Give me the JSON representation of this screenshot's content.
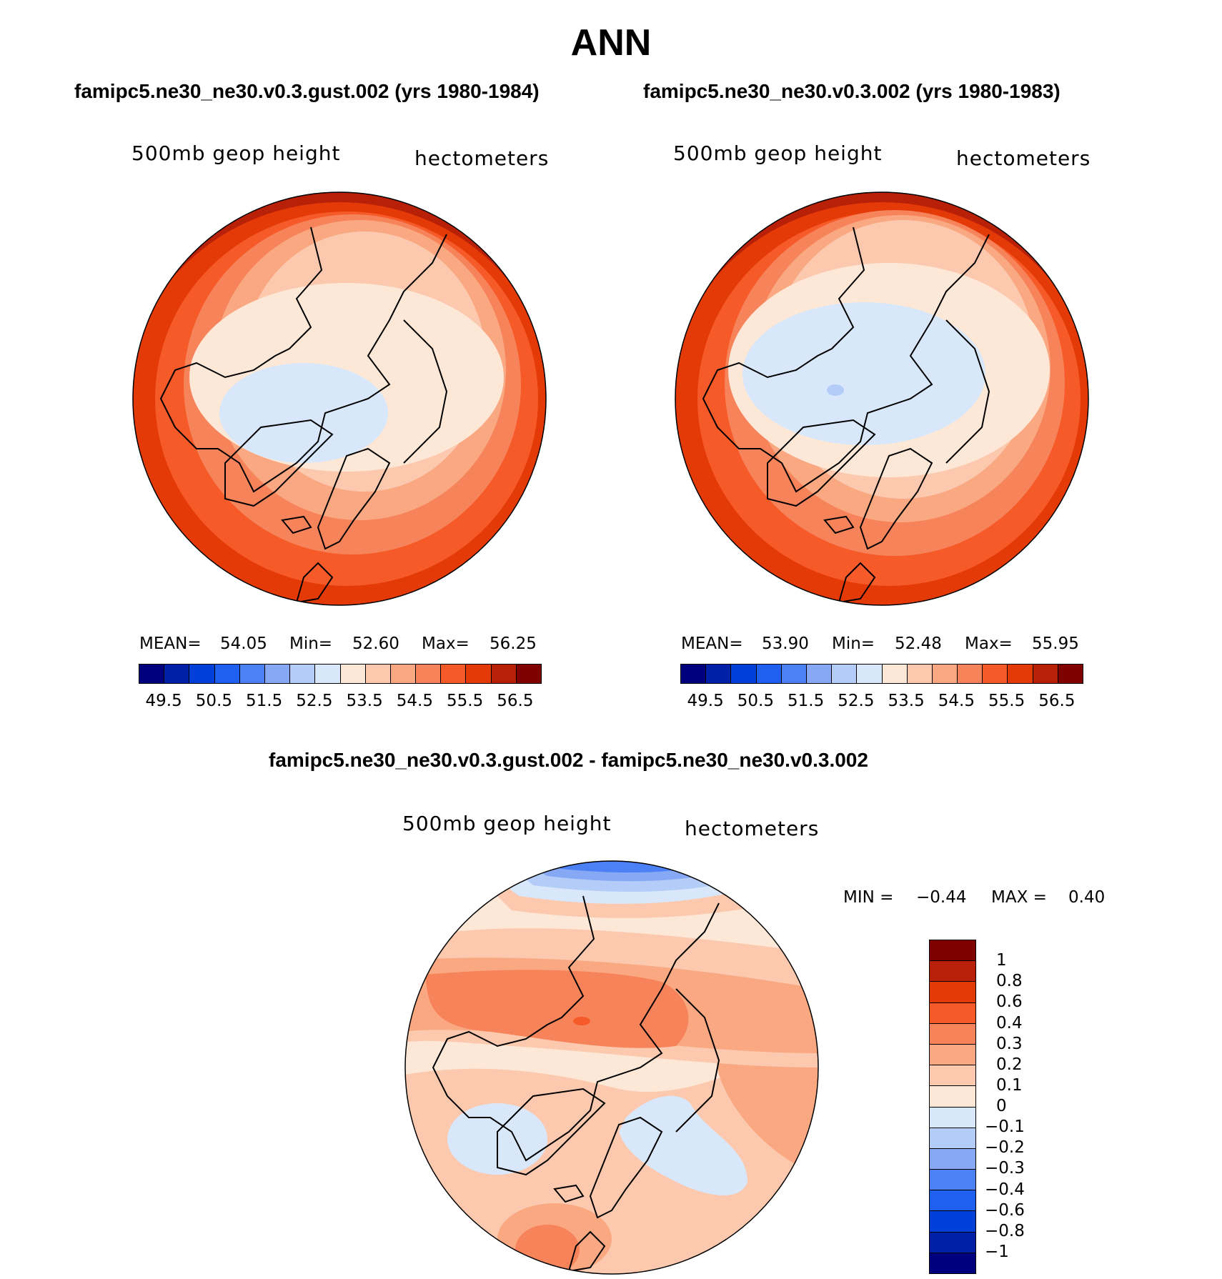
{
  "title": "ANN",
  "panels": [
    {
      "case": "famipc5.ne30_ne30.v0.3.gust.002 (yrs 1980-1984)",
      "variable": "500mb geop height",
      "units": "hectometers",
      "mean_label": "MEAN=",
      "mean": "54.05",
      "min_label": "Min=",
      "min": "52.60",
      "max_label": "Max=",
      "max": "56.25"
    },
    {
      "case": "famipc5.ne30_ne30.v0.3.002 (yrs 1980-1983)",
      "variable": "500mb geop height",
      "units": "hectometers",
      "mean_label": "MEAN=",
      "mean": "53.90",
      "min_label": "Min=",
      "min": "52.48",
      "max_label": "Max=",
      "max": "55.95"
    }
  ],
  "diff": {
    "case": "famipc5.ne30_ne30.v0.3.gust.002 - famipc5.ne30_ne30.v0.3.002",
    "variable": "500mb geop height",
    "units": "hectometers",
    "min_label": "MIN =",
    "min": "−0.44",
    "max_label": "MAX =",
    "max": "0.40"
  },
  "chart_data": [
    {
      "type": "heatmap",
      "projection": "north polar stereographic",
      "title": "famipc5.ne30_ne30.v0.3.gust.002 (yrs 1980-1984)",
      "variable": "500mb geop height",
      "units": "hectometers",
      "stats": {
        "mean": 54.05,
        "min": 52.6,
        "max": 56.25
      },
      "colorbar_ticks": [
        "49.5",
        "50.5",
        "51.5",
        "52.5",
        "53.5",
        "54.5",
        "55.5",
        "56.5"
      ]
    },
    {
      "type": "heatmap",
      "projection": "north polar stereographic",
      "title": "famipc5.ne30_ne30.v0.3.002 (yrs 1980-1983)",
      "variable": "500mb geop height",
      "units": "hectometers",
      "stats": {
        "mean": 53.9,
        "min": 52.48,
        "max": 55.95
      },
      "colorbar_ticks": [
        "49.5",
        "50.5",
        "51.5",
        "52.5",
        "53.5",
        "54.5",
        "55.5",
        "56.5"
      ]
    },
    {
      "type": "heatmap",
      "projection": "north polar stereographic",
      "title": "famipc5.ne30_ne30.v0.3.gust.002 - famipc5.ne30_ne30.v0.3.002",
      "variable": "500mb geop height",
      "units": "hectometers",
      "stats": {
        "min": -0.44,
        "max": 0.4
      },
      "colorbar_ticks": [
        "1",
        "0.8",
        "0.6",
        "0.4",
        "0.3",
        "0.2",
        "0.1",
        "0",
        "−0.1",
        "−0.2",
        "−0.3",
        "−0.4",
        "−0.6",
        "−0.8",
        "−1"
      ]
    }
  ],
  "colors": {
    "main_bins": [
      "#00007f",
      "#0020a8",
      "#0040d8",
      "#2060f0",
      "#4c80f5",
      "#86a8f5",
      "#b4ccf8",
      "#d8e8fa",
      "#fde8d8",
      "#fcc9ae",
      "#f9a882",
      "#f7835a",
      "#f55a28",
      "#e43a08",
      "#b82008",
      "#800000"
    ],
    "diff_bins": [
      "#800000",
      "#b82008",
      "#e43a08",
      "#f55a28",
      "#f7835a",
      "#f9a882",
      "#fcc9ae",
      "#fde8d8",
      "#d8e8fa",
      "#b4ccf8",
      "#86a8f5",
      "#4c80f5",
      "#2060f0",
      "#0040d8",
      "#0020a8",
      "#00007f"
    ]
  }
}
